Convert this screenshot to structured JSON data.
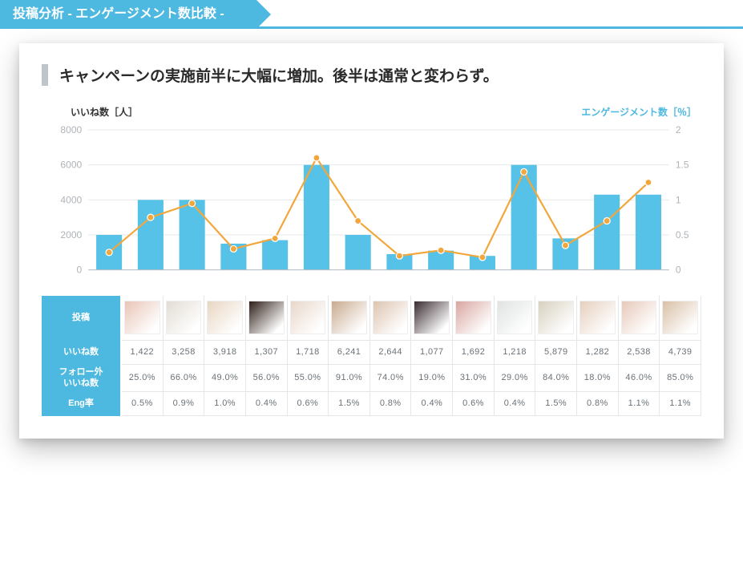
{
  "header": {
    "title": "投稿分析 - エンゲージメント数比較 -"
  },
  "callout": "キャンペーンの実施前半に大幅に増加。後半は通常と変わらず。",
  "chart": {
    "type": "bar+line",
    "left_axis_label": "いいね数［人］",
    "right_axis_label": "エンゲージメント数［％］",
    "left_axis": {
      "min": 0,
      "max": 8000,
      "step": 2000
    },
    "right_axis": {
      "min": 0,
      "max": 2,
      "step": 0.5
    },
    "bar_color": "#56c2e8",
    "line_color": "#f2a73c",
    "grid_color": "#e6e8ea",
    "axis_text_color": "#aeb4b9",
    "background": "#ffffff",
    "bar_values": [
      2000,
      4000,
      4000,
      1500,
      1700,
      6000,
      2000,
      900,
      1100,
      800,
      6000,
      1800,
      4300,
      4300
    ],
    "line_values": [
      0.25,
      0.75,
      0.95,
      0.3,
      0.45,
      1.6,
      0.7,
      0.2,
      0.28,
      0.18,
      1.4,
      0.35,
      0.7,
      1.25
    ],
    "bar_width_ratio": 0.62
  },
  "table": {
    "header_bg": "#4db8e0",
    "header_color": "#ffffff",
    "cell_border": "#e4e7ea",
    "cell_text_color": "#6a7278",
    "row_labels": [
      "投稿",
      "いいね数",
      "フォロー外\nいいね数",
      "Eng率"
    ],
    "thumbnail_tints": [
      "#e9c5b8",
      "#e2dcd4",
      "#e8d6c2",
      "#2e1f18",
      "#e8d7ca",
      "#c9aa90",
      "#ddc4b0",
      "#3a2c32",
      "#d9a6a0",
      "#dfe3e2",
      "#d7d0c0",
      "#e6cfbf",
      "#e7c9bb",
      "#d9c0a6"
    ],
    "likes": [
      "1,422",
      "3,258",
      "3,918",
      "1,307",
      "1,718",
      "6,241",
      "2,644",
      "1,077",
      "1,692",
      "1,218",
      "5,879",
      "1,282",
      "2,538",
      "4,739"
    ],
    "nonfollow": [
      "25.0%",
      "66.0%",
      "49.0%",
      "56.0%",
      "55.0%",
      "91.0%",
      "74.0%",
      "19.0%",
      "31.0%",
      "29.0%",
      "84.0%",
      "18.0%",
      "46.0%",
      "85.0%"
    ],
    "eng": [
      "0.5%",
      "0.9%",
      "1.0%",
      "0.4%",
      "0.6%",
      "1.5%",
      "0.8%",
      "0.4%",
      "0.6%",
      "0.4%",
      "1.5%",
      "0.8%",
      "1.1%",
      "1.1%"
    ]
  }
}
